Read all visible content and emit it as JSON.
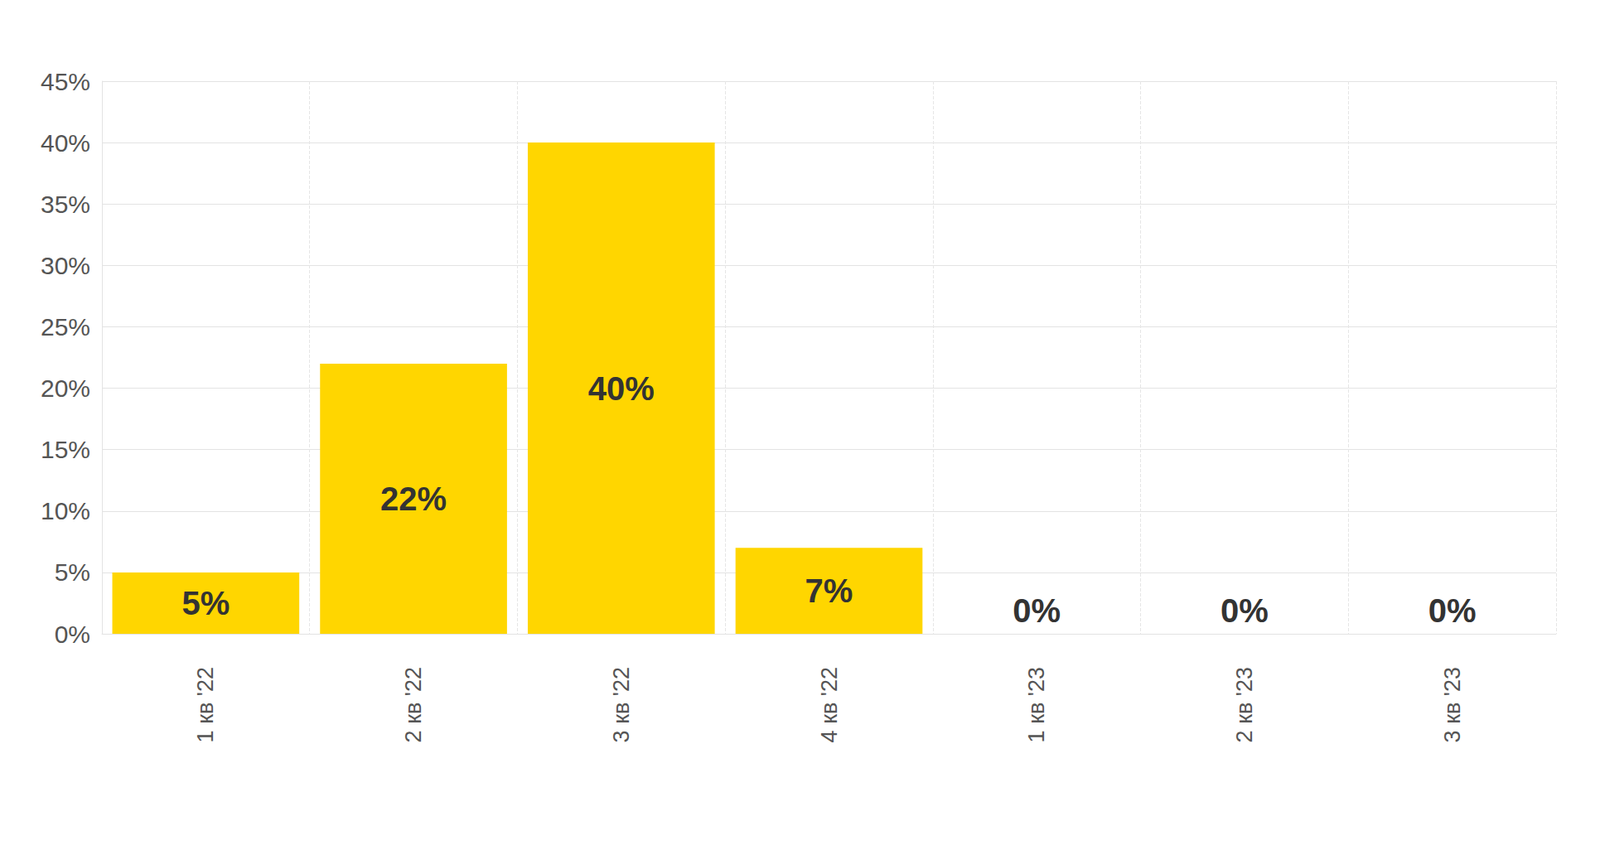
{
  "chart_data": {
    "type": "bar",
    "categories": [
      "1 кв '22",
      "2 кв '22",
      "3 кв '22",
      "4 кв '22",
      "1 кв '23",
      "2 кв '23",
      "3 кв '23"
    ],
    "values": [
      5,
      22,
      40,
      7,
      0,
      0,
      0
    ],
    "value_labels": [
      "5%",
      "22%",
      "40%",
      "7%",
      "0%",
      "0%",
      "0%"
    ],
    "color": "#ffd600",
    "ylim": [
      0,
      45
    ],
    "yticks": [
      {
        "value": 0,
        "label": "0%"
      },
      {
        "value": 5,
        "label": "5%"
      },
      {
        "value": 10,
        "label": "10%"
      },
      {
        "value": 15,
        "label": "15%"
      },
      {
        "value": 20,
        "label": "20%"
      },
      {
        "value": 25,
        "label": "25%"
      },
      {
        "value": 30,
        "label": "30%"
      },
      {
        "value": 35,
        "label": "35%"
      },
      {
        "value": 40,
        "label": "40%"
      },
      {
        "value": 45,
        "label": "45%"
      }
    ],
    "grid": true,
    "data_labels": true
  }
}
